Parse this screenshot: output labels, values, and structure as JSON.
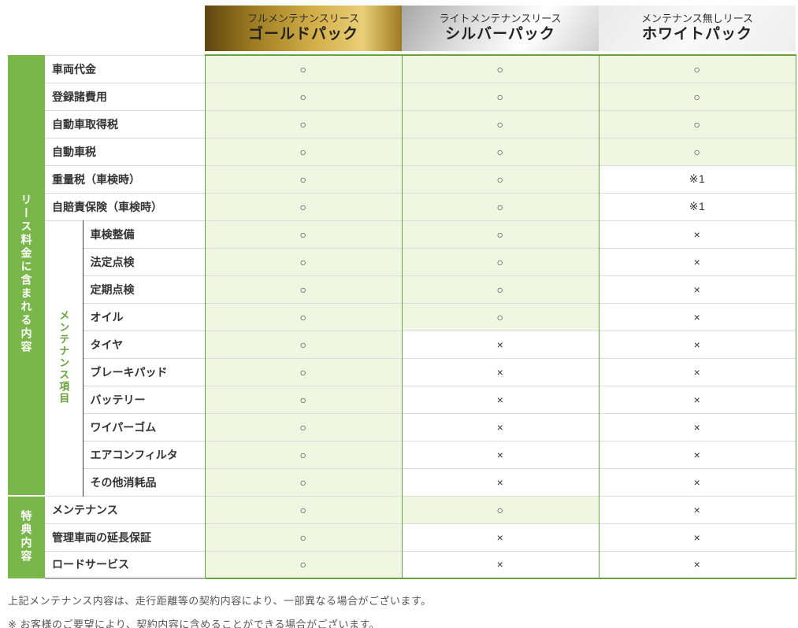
{
  "header": {
    "packs": [
      {
        "id": "gold",
        "type_label": "フルメンテナンスリース",
        "pack_label": "ゴールドパック"
      },
      {
        "id": "silver",
        "type_label": "ライトメンテナンスリース",
        "pack_label": "シルバーパック"
      },
      {
        "id": "white",
        "type_label": "メンテナンス無しリース",
        "pack_label": "ホワイトパック"
      }
    ]
  },
  "table": {
    "groups": {
      "lease": {
        "label": "リース料金に含まれる内容",
        "row_start": 0,
        "row_count": 16
      },
      "benefit": {
        "label": "特典内容",
        "row_start": 16,
        "row_count": 3
      },
      "maintenance_sub": {
        "label": "メンテナンス項目",
        "row_start": 6,
        "row_count": 10
      }
    },
    "symbols": {
      "included": "○",
      "excluded": "×",
      "see_note": "※1"
    },
    "columns": [
      "gold",
      "silver",
      "white"
    ],
    "rows": [
      {
        "label": "車両代金",
        "values": [
          "○",
          "○",
          "○"
        ]
      },
      {
        "label": "登録諸費用",
        "values": [
          "○",
          "○",
          "○"
        ]
      },
      {
        "label": "自動車取得税",
        "values": [
          "○",
          "○",
          "○"
        ]
      },
      {
        "label": "自動車税",
        "values": [
          "○",
          "○",
          "○"
        ]
      },
      {
        "label": "重量税（車検時）",
        "values": [
          "○",
          "○",
          "※1"
        ]
      },
      {
        "label": "自賠責保険（車検時）",
        "values": [
          "○",
          "○",
          "※1"
        ]
      },
      {
        "label": "車検整備",
        "values": [
          "○",
          "○",
          "×"
        ]
      },
      {
        "label": "法定点検",
        "values": [
          "○",
          "○",
          "×"
        ]
      },
      {
        "label": "定期点検",
        "values": [
          "○",
          "○",
          "×"
        ]
      },
      {
        "label": "オイル",
        "values": [
          "○",
          "○",
          "×"
        ]
      },
      {
        "label": "タイヤ",
        "values": [
          "○",
          "×",
          "×"
        ]
      },
      {
        "label": "ブレーキパッド",
        "values": [
          "○",
          "×",
          "×"
        ]
      },
      {
        "label": "バッテリー",
        "values": [
          "○",
          "×",
          "×"
        ]
      },
      {
        "label": "ワイパーゴム",
        "values": [
          "○",
          "×",
          "×"
        ]
      },
      {
        "label": "エアコンフィルタ",
        "values": [
          "○",
          "×",
          "×"
        ]
      },
      {
        "label": "その他消耗品",
        "values": [
          "○",
          "×",
          "×"
        ]
      },
      {
        "label": "メンテナンス",
        "values": [
          "○",
          "○",
          "×"
        ]
      },
      {
        "label": "管理車両の延長保証",
        "values": [
          "○",
          "×",
          "×"
        ]
      },
      {
        "label": "ロードサービス",
        "values": [
          "○",
          "×",
          "×"
        ]
      }
    ]
  },
  "footer": {
    "note1": "上記メンテナンス内容は、走行距離等の契約内容により、一部異なる場合がございます。",
    "note2": "※ お客様のご要望により、契約内容に含めることができる場合がございます。"
  },
  "colors": {
    "accent_green": "#79b74a",
    "border_green": "#67a33a",
    "included_cell_bg": "#eff7e3",
    "gold_dark": "#5d4710",
    "gold_light": "#e9cf78",
    "silver_dark": "#a6a6a6",
    "silver_light": "#ffffff",
    "symbol_color": "#333333"
  }
}
